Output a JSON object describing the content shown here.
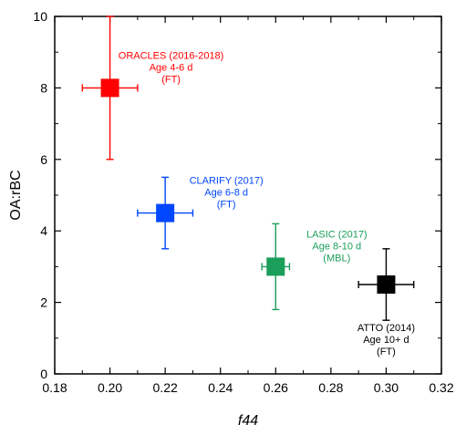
{
  "chart_data": {
    "type": "scatter",
    "title": "",
    "xlabel": "f44",
    "ylabel": "OA:rBC",
    "xlim": [
      0.18,
      0.32
    ],
    "ylim": [
      0,
      10
    ],
    "xticks": [
      0.18,
      0.2,
      0.22,
      0.24,
      0.26,
      0.28,
      0.3,
      0.32
    ],
    "xtick_labels": [
      "0.18",
      "0.20",
      "0.22",
      "0.24",
      "0.26",
      "0.28",
      "0.30",
      "0.32"
    ],
    "yticks": [
      0,
      2,
      4,
      6,
      8,
      10
    ],
    "ytick_labels": [
      "0",
      "2",
      "4",
      "6",
      "8",
      "10"
    ],
    "grid": false,
    "points": [
      {
        "x": 0.2,
        "y": 8.0,
        "x_err": [
          0.19,
          0.21
        ],
        "y_err": [
          6.0,
          10.0
        ],
        "color": "#ff0000",
        "label_lines": [
          "ORACLES (2016-2018)",
          "Age 4-6 d",
          "(FT)"
        ],
        "label_pos": "upper-right"
      },
      {
        "x": 0.22,
        "y": 4.5,
        "x_err": [
          0.21,
          0.23
        ],
        "y_err": [
          3.5,
          5.5
        ],
        "color": "#0047ff",
        "label_lines": [
          "CLARIFY (2017)",
          "Age 6-8 d",
          "(FT)"
        ],
        "label_pos": "upper-right"
      },
      {
        "x": 0.26,
        "y": 3.0,
        "x_err": [
          0.255,
          0.265
        ],
        "y_err": [
          1.8,
          4.2
        ],
        "color": "#1a9e5a",
        "label_lines": [
          "LASIC (2017)",
          "Age 8-10 d",
          "(MBL)"
        ],
        "label_pos": "upper-right"
      },
      {
        "x": 0.3,
        "y": 2.5,
        "x_err": [
          0.29,
          0.31
        ],
        "y_err": [
          1.5,
          3.5
        ],
        "color": "#000000",
        "label_lines": [
          "ATTO (2014)",
          "Age 10+ d",
          "(FT)"
        ],
        "label_pos": "below"
      }
    ]
  }
}
